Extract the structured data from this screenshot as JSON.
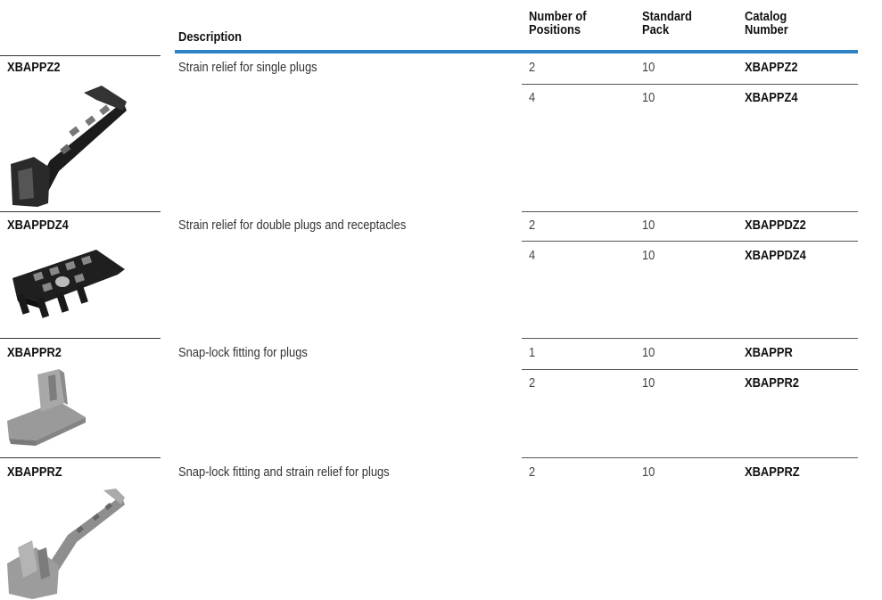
{
  "header": {
    "description": "Description",
    "positions_line1": "Number of",
    "positions_line2": "Positions",
    "pack_line1": "Standard",
    "pack_line2": "Pack",
    "catalog_line1": "Catalog",
    "catalog_line2": "Number"
  },
  "colors": {
    "accent_rule": "#2f82c3"
  },
  "products": [
    {
      "label": "XBAPPZ2",
      "description": "Strain relief for single plugs",
      "rows": [
        {
          "positions": "2",
          "pack": "10",
          "catalog": "XBAPPZ2"
        },
        {
          "positions": "4",
          "pack": "10",
          "catalog": "XBAPPZ4"
        }
      ]
    },
    {
      "label": "XBAPPDZ4",
      "description": "Strain relief for double plugs and receptacles",
      "rows": [
        {
          "positions": "2",
          "pack": "10",
          "catalog": "XBAPPDZ2"
        },
        {
          "positions": "4",
          "pack": "10",
          "catalog": "XBAPPDZ4"
        }
      ]
    },
    {
      "label": "XBAPPR2",
      "description": "Snap-lock fitting for plugs",
      "rows": [
        {
          "positions": "1",
          "pack": "10",
          "catalog": "XBAPPR"
        },
        {
          "positions": "2",
          "pack": "10",
          "catalog": "XBAPPR2"
        }
      ]
    },
    {
      "label": "XBAPPRZ",
      "description": "Snap-lock fitting and strain relief for plugs",
      "rows": [
        {
          "positions": "2",
          "pack": "10",
          "catalog": "XBAPPRZ"
        }
      ]
    }
  ]
}
